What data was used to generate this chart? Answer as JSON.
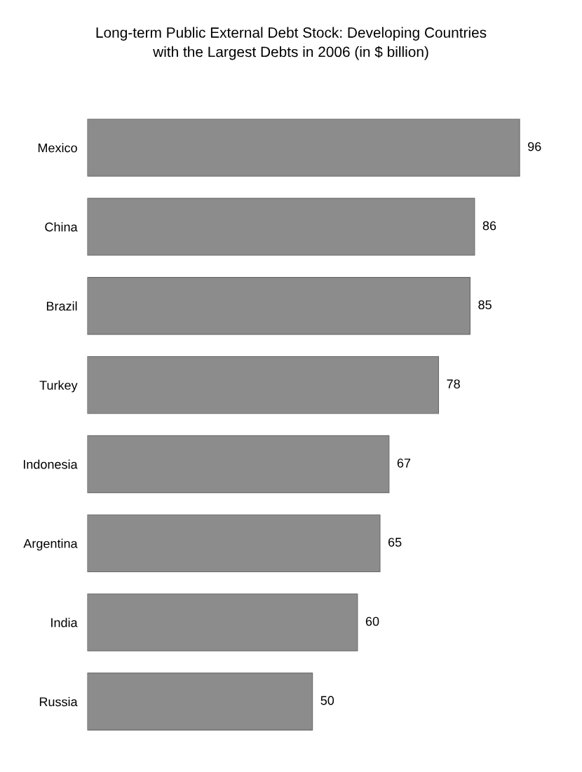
{
  "chart_data": {
    "type": "bar",
    "orientation": "horizontal",
    "title": "Long-term Public External Debt Stock: Developing Countries\nwith the Largest Debts in 2006 (in $ billion)",
    "categories": [
      "Mexico",
      "China",
      "Brazil",
      "Turkey",
      "Indonesia",
      "Argentina",
      "India",
      "Russia"
    ],
    "values": [
      96,
      86,
      85,
      78,
      67,
      65,
      60,
      50
    ],
    "color": "#8c8c8c",
    "data_labels": true
  }
}
